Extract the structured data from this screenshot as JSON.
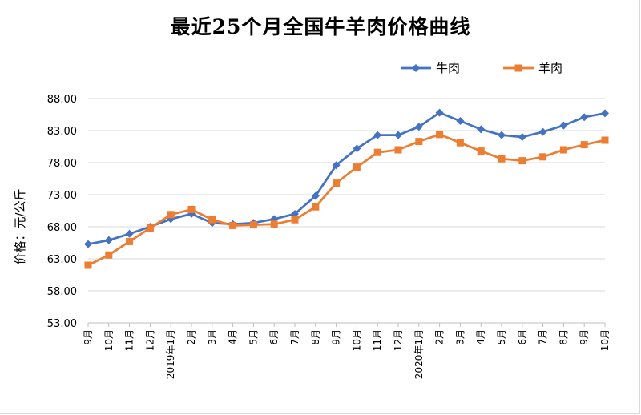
{
  "chart_data": {
    "type": "line",
    "title": "最近25个月全国牛羊肉价格曲线",
    "ylabel": "价格：元/公斤",
    "xlabel": "",
    "ylim": [
      53,
      88
    ],
    "yticks": [
      "53.00",
      "58.00",
      "63.00",
      "68.00",
      "73.00",
      "78.00",
      "83.00",
      "88.00"
    ],
    "grid": true,
    "legend_position": "top-right",
    "categories": [
      "9月",
      "10月",
      "11月",
      "12月",
      "2019年1月",
      "2月",
      "3月",
      "4月",
      "5月",
      "6月",
      "7月",
      "8月",
      "9月",
      "10月",
      "11月",
      "12月",
      "2020年1月",
      "2月",
      "3月",
      "4月",
      "5月",
      "6月",
      "7月",
      "8月",
      "9月",
      "10月"
    ],
    "series": [
      {
        "name": "牛肉",
        "color": "#4472c4",
        "marker": "diamond",
        "values": [
          65.3,
          65.9,
          66.9,
          68.0,
          69.2,
          70.0,
          68.6,
          68.4,
          68.6,
          69.2,
          70.0,
          72.8,
          77.6,
          80.2,
          82.3,
          82.3,
          83.6,
          85.8,
          84.5,
          83.2,
          82.3,
          82.0,
          82.8,
          83.8,
          85.1,
          85.7
        ]
      },
      {
        "name": "羊肉",
        "color": "#ed7d31",
        "marker": "square",
        "values": [
          62.0,
          63.6,
          65.7,
          67.8,
          69.9,
          70.7,
          69.1,
          68.2,
          68.3,
          68.4,
          69.1,
          71.1,
          74.8,
          77.3,
          79.6,
          80.0,
          81.3,
          82.4,
          81.1,
          79.8,
          78.6,
          78.3,
          78.9,
          80.0,
          80.8,
          81.5
        ]
      }
    ]
  }
}
